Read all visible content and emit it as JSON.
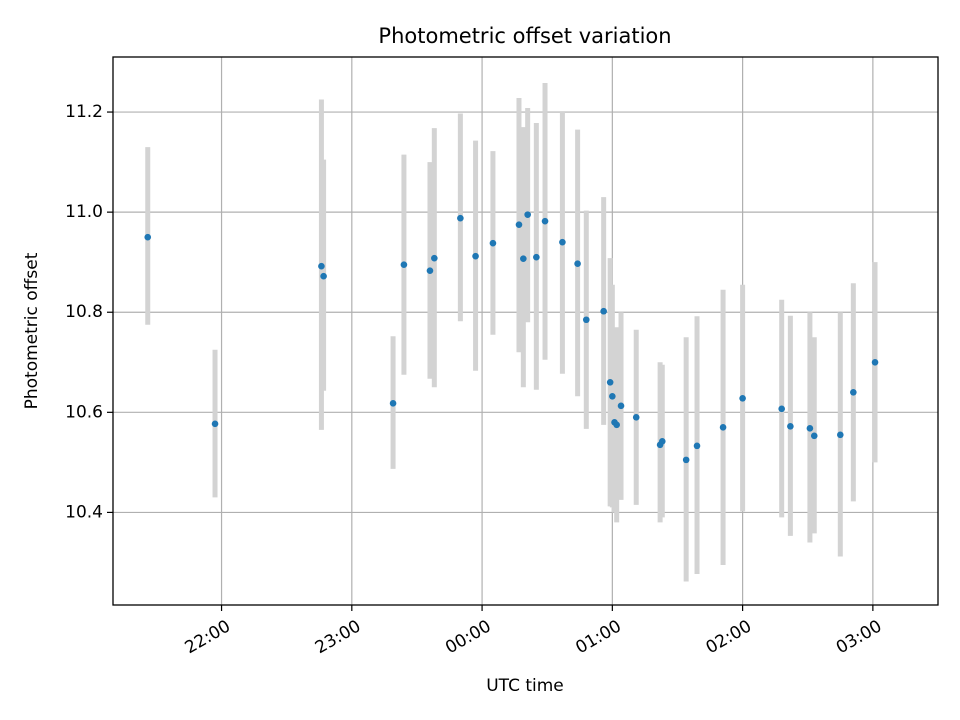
{
  "chart_data": {
    "type": "scatter",
    "title": "Photometric offset variation",
    "xlabel": "UTC time",
    "ylabel": "Photometric offset",
    "x_unit": "UTC time (HH:MM, night spanning midnight)",
    "xlim": [
      "21:10",
      "03:30"
    ],
    "ylim": [
      10.215,
      11.31
    ],
    "x_ticks": [
      "22:00",
      "23:00",
      "00:00",
      "01:00",
      "02:00",
      "03:00"
    ],
    "y_ticks": [
      10.4,
      10.6,
      10.8,
      11.0,
      11.2
    ],
    "y_tick_labels": [
      "10.4",
      "10.6",
      "10.8",
      "11.0",
      "11.2"
    ],
    "grid": true,
    "marker_color": "#1f77b4",
    "errorbar_color": "#d3d3d3",
    "points": [
      {
        "x": "21:26",
        "y": 10.95,
        "lo": 10.775,
        "hi": 11.13
      },
      {
        "x": "21:57",
        "y": 10.577,
        "lo": 10.43,
        "hi": 10.725
      },
      {
        "x": "22:46",
        "y": 10.892,
        "lo": 10.565,
        "hi": 11.225
      },
      {
        "x": "22:47",
        "y": 10.872,
        "lo": 10.643,
        "hi": 11.105
      },
      {
        "x": "23:19",
        "y": 10.618,
        "lo": 10.487,
        "hi": 10.752
      },
      {
        "x": "23:24",
        "y": 10.895,
        "lo": 10.675,
        "hi": 11.115
      },
      {
        "x": "23:36",
        "y": 10.883,
        "lo": 10.667,
        "hi": 11.1
      },
      {
        "x": "23:38",
        "y": 10.908,
        "lo": 10.65,
        "hi": 11.168
      },
      {
        "x": "23:50",
        "y": 10.988,
        "lo": 10.782,
        "hi": 11.197
      },
      {
        "x": "23:57",
        "y": 10.912,
        "lo": 10.683,
        "hi": 11.143
      },
      {
        "x": "00:05",
        "y": 10.938,
        "lo": 10.755,
        "hi": 11.122
      },
      {
        "x": "00:17",
        "y": 10.975,
        "lo": 10.72,
        "hi": 11.228
      },
      {
        "x": "00:19",
        "y": 10.907,
        "lo": 10.65,
        "hi": 11.17
      },
      {
        "x": "00:21",
        "y": 10.995,
        "lo": 10.78,
        "hi": 11.208
      },
      {
        "x": "00:25",
        "y": 10.91,
        "lo": 10.645,
        "hi": 11.178
      },
      {
        "x": "00:29",
        "y": 10.982,
        "lo": 10.705,
        "hi": 11.258
      },
      {
        "x": "00:37",
        "y": 10.94,
        "lo": 10.677,
        "hi": 11.2
      },
      {
        "x": "00:44",
        "y": 10.897,
        "lo": 10.632,
        "hi": 11.165
      },
      {
        "x": "00:48",
        "y": 10.785,
        "lo": 10.567,
        "hi": 11.003
      },
      {
        "x": "00:56",
        "y": 10.802,
        "lo": 10.575,
        "hi": 11.03
      },
      {
        "x": "00:59",
        "y": 10.66,
        "lo": 10.412,
        "hi": 10.908
      },
      {
        "x": "01:00",
        "y": 10.632,
        "lo": 10.41,
        "hi": 10.855
      },
      {
        "x": "01:01",
        "y": 10.58,
        "lo": 10.4,
        "hi": 10.765
      },
      {
        "x": "01:02",
        "y": 10.575,
        "lo": 10.38,
        "hi": 10.77
      },
      {
        "x": "01:04",
        "y": 10.613,
        "lo": 10.425,
        "hi": 10.8
      },
      {
        "x": "01:11",
        "y": 10.59,
        "lo": 10.415,
        "hi": 10.765
      },
      {
        "x": "01:22",
        "y": 10.535,
        "lo": 10.38,
        "hi": 10.7
      },
      {
        "x": "01:23",
        "y": 10.542,
        "lo": 10.39,
        "hi": 10.695
      },
      {
        "x": "01:34",
        "y": 10.505,
        "lo": 10.262,
        "hi": 10.75
      },
      {
        "x": "01:39",
        "y": 10.533,
        "lo": 10.277,
        "hi": 10.792
      },
      {
        "x": "01:51",
        "y": 10.57,
        "lo": 10.295,
        "hi": 10.845
      },
      {
        "x": "02:00",
        "y": 10.628,
        "lo": 10.402,
        "hi": 10.855
      },
      {
        "x": "02:18",
        "y": 10.607,
        "lo": 10.39,
        "hi": 10.825
      },
      {
        "x": "02:22",
        "y": 10.572,
        "lo": 10.353,
        "hi": 10.793
      },
      {
        "x": "02:31",
        "y": 10.568,
        "lo": 10.34,
        "hi": 10.8
      },
      {
        "x": "02:33",
        "y": 10.553,
        "lo": 10.358,
        "hi": 10.75
      },
      {
        "x": "02:45",
        "y": 10.555,
        "lo": 10.312,
        "hi": 10.8
      },
      {
        "x": "02:51",
        "y": 10.64,
        "lo": 10.422,
        "hi": 10.858
      },
      {
        "x": "03:01",
        "y": 10.7,
        "lo": 10.5,
        "hi": 10.9
      }
    ]
  }
}
